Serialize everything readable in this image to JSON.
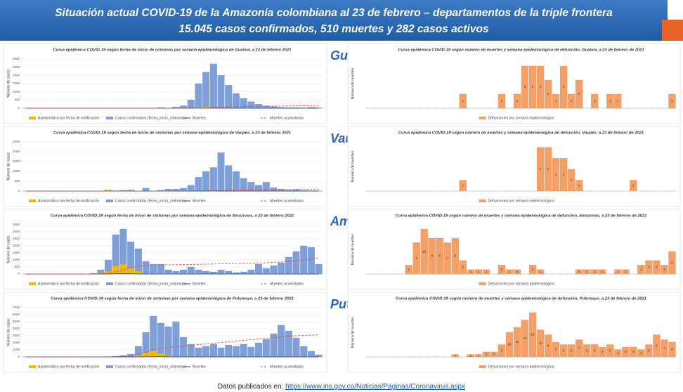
{
  "header": {
    "line1": "Situación actual COVID-19 de la Amazonía  colombiana al 23 de febrero – departamentos de la triple frontera",
    "line2": "15.045 casos confirmados, 510 muertes y 282 casos activos"
  },
  "departments": [
    "Guainía",
    "Vaupés",
    "Amazonas",
    "Putumayo"
  ],
  "chart_data": [
    {
      "type": "combo",
      "title": "Curva epidémica COVID-19 según fecha de inicio de síntomas por semana epidemiológica de Guainía, a 23 de febrero 2021",
      "y_label": "Número de casos",
      "ylim": [
        0,
        3000
      ],
      "yticks": [
        0,
        500,
        1000,
        1500,
        2000,
        2500,
        3000
      ],
      "grid": true,
      "series": [
        {
          "name": "Casos confirmados (fecha_inicio_síntomas)",
          "color": "#7f9fd9",
          "kind": "bar",
          "values": [
            0,
            0,
            0,
            0,
            0,
            0,
            0,
            0,
            0,
            5,
            0,
            0,
            0,
            0,
            0,
            0,
            0,
            0,
            40,
            0,
            80,
            150,
            500,
            1500,
            2200,
            2700,
            2000,
            1400,
            900,
            600,
            400,
            250,
            150,
            100,
            60,
            40,
            30,
            20,
            60,
            30
          ]
        },
        {
          "name": "Asintomático por fecha de notificación",
          "color": "#f5b800",
          "kind": "bar",
          "values": [
            0,
            0,
            0,
            0,
            0,
            0,
            0,
            0,
            0,
            0,
            0,
            0,
            0,
            0,
            0,
            0,
            0,
            0,
            0,
            0,
            0,
            0,
            30,
            60,
            90,
            60,
            30,
            0,
            0,
            0,
            0,
            0,
            0,
            0,
            0,
            0,
            0,
            0,
            0,
            0
          ]
        },
        {
          "name": "Muertes",
          "color": "#1f3e7a",
          "kind": "line",
          "values": [
            0,
            0,
            0,
            0,
            0,
            0,
            0,
            0,
            0,
            0,
            0,
            0,
            0,
            0,
            0,
            0,
            0,
            0,
            0,
            0,
            0,
            0,
            0,
            2,
            5,
            5,
            3,
            0,
            0,
            0,
            0,
            0,
            0,
            0,
            0,
            0,
            0,
            0,
            0,
            0
          ]
        },
        {
          "name": "Muertes acumuladas",
          "color": "#e8503a",
          "kind": "line",
          "dash": true,
          "values": [
            0,
            0,
            0,
            0,
            0,
            0,
            0,
            0,
            0,
            0,
            0,
            0,
            0,
            0,
            0,
            0,
            0,
            0,
            0,
            0,
            0,
            2,
            4,
            10,
            20,
            40,
            60,
            80,
            100,
            110,
            115,
            120,
            125,
            130,
            135,
            140,
            145,
            150,
            155,
            160
          ]
        }
      ]
    },
    {
      "type": "bar",
      "title": "Curva epidémica COVID-19 según número de muertes y semana epidemiológica de defunción, Guainía, a 23 de febrero de 2021",
      "y_label": "Número de muertes",
      "ylim": [
        0,
        3.5
      ],
      "data_labels": true,
      "series": [
        {
          "name": "Defunciones por semana epidemiológica",
          "color": "#f4a066",
          "values": [
            0,
            0,
            0,
            0,
            0,
            0,
            0,
            0,
            0,
            0,
            0,
            0,
            1,
            0,
            0,
            0,
            0,
            1,
            0,
            1,
            3,
            3,
            3,
            2,
            1,
            3,
            1,
            2,
            0,
            1,
            0,
            1,
            1,
            0,
            0,
            0,
            0,
            0,
            0,
            1
          ]
        }
      ]
    },
    {
      "type": "combo",
      "title": "Curva epidémica COVID-19 según fecha de inicio de síntomas por semana epidemiológica de Vaupés, a 23 de febrero 2021",
      "y_label": "Número de casos",
      "ylim": [
        0,
        2500
      ],
      "yticks": [
        0,
        500,
        1000,
        1500,
        2000,
        2500
      ],
      "grid": true,
      "series": [
        {
          "name": "Casos confirmados (fecha_inicio_síntomas)",
          "color": "#7f9fd9",
          "kind": "bar",
          "values": [
            0,
            0,
            0,
            0,
            0,
            0,
            0,
            0,
            0,
            0,
            0,
            0,
            20,
            40,
            60,
            0,
            150,
            0,
            50,
            100,
            100,
            150,
            300,
            700,
            1000,
            1200,
            1950,
            1300,
            1000,
            650,
            450,
            300,
            450,
            180,
            100,
            50,
            80,
            30,
            20,
            10
          ]
        },
        {
          "name": "Asintomático por fecha de notificación",
          "color": "#f5b800",
          "kind": "bar",
          "values": [
            0,
            0,
            0,
            0,
            0,
            0,
            0,
            0,
            0,
            0,
            0,
            60,
            0,
            0,
            50,
            0,
            0,
            0,
            40,
            0,
            0,
            0,
            0,
            0,
            0,
            0,
            0,
            0,
            0,
            0,
            0,
            0,
            0,
            0,
            0,
            0,
            0,
            0,
            0,
            0
          ]
        },
        {
          "name": "Muertes",
          "color": "#1f3e7a",
          "kind": "line",
          "values": [
            0,
            0,
            0,
            0,
            0,
            0,
            0,
            0,
            0,
            0,
            0,
            0,
            0,
            0,
            0,
            0,
            0,
            0,
            0,
            0,
            0,
            0,
            0,
            0,
            1,
            2,
            1,
            0,
            0,
            0,
            0,
            0,
            0,
            0,
            0,
            0,
            0,
            0,
            0,
            0
          ]
        },
        {
          "name": "Muertes acumuladas",
          "color": "#e8503a",
          "kind": "line",
          "dash": true,
          "values": [
            0,
            0,
            0,
            0,
            0,
            0,
            0,
            0,
            0,
            0,
            0,
            0,
            0,
            0,
            0,
            0,
            0,
            0,
            0,
            0,
            5,
            10,
            15,
            20,
            25,
            30,
            35,
            40,
            45,
            50,
            55,
            60,
            65,
            70,
            75,
            80,
            85,
            90,
            95,
            100
          ]
        }
      ]
    },
    {
      "type": "bar",
      "title": "Curva epidémica COVID-19 según número de muertes y semana epidemiológica de defunción, Vaupés, a 23 de febrero de 2021",
      "y_label": "Número de muertes",
      "ylim": [
        0,
        4.5
      ],
      "data_labels": true,
      "series": [
        {
          "name": "Defunciones por semana epidemiológica",
          "color": "#f4a066",
          "values": [
            0,
            0,
            0,
            0,
            0,
            0,
            0,
            0,
            0,
            0,
            0,
            0,
            1,
            0,
            0,
            0,
            0,
            0,
            0,
            0,
            0,
            0,
            4,
            4,
            3,
            3,
            2,
            1,
            0,
            0,
            0,
            0,
            0,
            0,
            1,
            0,
            0,
            0,
            0,
            0
          ]
        }
      ]
    },
    {
      "type": "combo",
      "title": "Curva epidémica COVID-19 según fecha de inicio de síntomas por semana epidemiológica de Amazonas, a 23 de febrero 2021",
      "y_label": "Número de casos",
      "ylim": [
        0,
        3500
      ],
      "yticks": [
        0,
        500,
        1000,
        1500,
        2000,
        2500,
        3000,
        3500
      ],
      "grid": true,
      "series": [
        {
          "name": "Casos confirmados (fecha_inicio_síntomas)",
          "color": "#7f9fd9",
          "kind": "bar",
          "values": [
            0,
            0,
            0,
            0,
            0,
            0,
            0,
            0,
            0,
            50,
            300,
            1000,
            2800,
            3200,
            2300,
            1800,
            900,
            700,
            700,
            300,
            200,
            300,
            500,
            300,
            200,
            150,
            300,
            200,
            100,
            150,
            300,
            700,
            400,
            600,
            800,
            1200,
            1600,
            2000,
            1900,
            700
          ]
        },
        {
          "name": "Asintomático por fecha de notificación",
          "color": "#f5b800",
          "kind": "bar",
          "values": [
            0,
            0,
            0,
            0,
            0,
            0,
            0,
            0,
            0,
            0,
            100,
            200,
            600,
            700,
            400,
            200,
            0,
            0,
            0,
            0,
            0,
            0,
            0,
            0,
            0,
            0,
            0,
            0,
            0,
            0,
            0,
            0,
            0,
            0,
            0,
            0,
            0,
            0,
            0,
            0
          ]
        },
        {
          "name": "Muertes",
          "color": "#1f3e7a",
          "kind": "line",
          "values": [
            0,
            0,
            0,
            0,
            0,
            0,
            0,
            0,
            0,
            0,
            0,
            0,
            20,
            30,
            20,
            0,
            0,
            0,
            0,
            0,
            0,
            0,
            0,
            0,
            0,
            0,
            0,
            0,
            0,
            0,
            0,
            0,
            0,
            0,
            0,
            0,
            0,
            0,
            0,
            0
          ]
        },
        {
          "name": "Muertes acumuladas",
          "color": "#e8503a",
          "kind": "line",
          "dash": true,
          "values": [
            0,
            0,
            0,
            0,
            0,
            0,
            0,
            0,
            0,
            0,
            20,
            60,
            150,
            300,
            450,
            550,
            600,
            620,
            640,
            650,
            660,
            670,
            680,
            690,
            700,
            710,
            720,
            730,
            740,
            750,
            760,
            780,
            800,
            830,
            860,
            900,
            950,
            1000,
            1050,
            1150
          ]
        }
      ]
    },
    {
      "type": "bar",
      "title": "Curva epidémica COVID-19 según número de muertes y semana epidemiológica de defunción, Amazonas, a 23 de febrero de 2021",
      "y_label": "Número de muertes",
      "ylim": [
        0,
        11
      ],
      "data_labels": true,
      "series": [
        {
          "name": "Defunciones por semana epidemiológica",
          "color": "#f4a066",
          "values": [
            0,
            0,
            0,
            0,
            0,
            2,
            7,
            10,
            8,
            8,
            7,
            8,
            3,
            1,
            1,
            1,
            0,
            2,
            1,
            1,
            0,
            2,
            1,
            0,
            0,
            0,
            0,
            1,
            1,
            1,
            1,
            0,
            1,
            1,
            0,
            2,
            3,
            3,
            2,
            5
          ]
        }
      ]
    },
    {
      "type": "combo",
      "title": "Curva epidémica COVID-19 según fecha de inicio de síntomas por semana epidemiológica de Putumayo, a 23 de febrero 2021",
      "y_label": "Número de casos",
      "ylim": [
        0,
        7000
      ],
      "yticks": [
        0,
        1000,
        2000,
        3000,
        4000,
        5000,
        6000,
        7000
      ],
      "grid": true,
      "series": [
        {
          "name": "Casos confirmados (fecha_inicio_síntomas)",
          "color": "#7f9fd9",
          "kind": "bar",
          "values": [
            0,
            0,
            0,
            0,
            0,
            0,
            0,
            0,
            0,
            0,
            0,
            50,
            100,
            200,
            400,
            1500,
            3500,
            5800,
            4800,
            4300,
            5000,
            2800,
            1800,
            1300,
            1500,
            1800,
            1300,
            1700,
            1500,
            1800,
            1400,
            2000,
            2500,
            3300,
            4500,
            3700,
            2700,
            1500,
            800,
            300
          ]
        },
        {
          "name": "Asintomático por fecha de notificación",
          "color": "#f5b800",
          "kind": "bar",
          "values": [
            0,
            0,
            0,
            0,
            0,
            0,
            0,
            0,
            0,
            0,
            0,
            0,
            0,
            0,
            0,
            200,
            600,
            900,
            500,
            200,
            0,
            0,
            0,
            0,
            0,
            0,
            0,
            0,
            0,
            0,
            0,
            0,
            0,
            0,
            0,
            0,
            0,
            0,
            0,
            0
          ]
        },
        {
          "name": "Muertes",
          "color": "#1f3e7a",
          "kind": "line",
          "values": [
            0,
            0,
            0,
            0,
            0,
            0,
            0,
            0,
            0,
            0,
            0,
            0,
            0,
            0,
            0,
            0,
            20,
            30,
            30,
            0,
            0,
            0,
            0,
            0,
            0,
            0,
            0,
            0,
            0,
            0,
            0,
            0,
            0,
            0,
            0,
            0,
            0,
            0,
            0,
            0
          ]
        },
        {
          "name": "Muertes acumuladas",
          "color": "#e8503a",
          "kind": "line",
          "dash": true,
          "values": [
            0,
            0,
            0,
            0,
            0,
            0,
            0,
            0,
            0,
            0,
            0,
            0,
            50,
            100,
            200,
            400,
            700,
            1000,
            1200,
            1350,
            1450,
            1550,
            1650,
            1750,
            1850,
            1950,
            2050,
            2150,
            2250,
            2350,
            2450,
            2550,
            2650,
            2750,
            2850,
            2950,
            3000,
            3050,
            3100,
            3150
          ]
        }
      ]
    },
    {
      "type": "bar",
      "title": "Curva epidémica COVID-19 según número de muertes y semana epidemiológica de defunción, Putumayo, a 23 de febrero de 2021",
      "y_label": "Número de muertes",
      "ylim": [
        0,
        20
      ],
      "data_labels": true,
      "series": [
        {
          "name": "Defunciones por semana epidemiológica",
          "color": "#f4a066",
          "values": [
            0,
            0,
            0,
            0,
            0,
            0,
            0,
            0,
            0,
            0,
            0,
            1,
            0,
            1,
            1,
            2,
            2,
            5,
            10,
            12,
            15,
            18,
            11,
            9,
            6,
            5,
            5,
            7,
            5,
            5,
            4,
            5,
            3,
            4,
            4,
            3,
            5,
            9,
            7,
            6
          ]
        }
      ]
    }
  ],
  "footer": {
    "text": "Datos publicados en: ",
    "link": "https://www.ins.gov.co/Noticias/Paginas/Coronavirus.aspx"
  }
}
